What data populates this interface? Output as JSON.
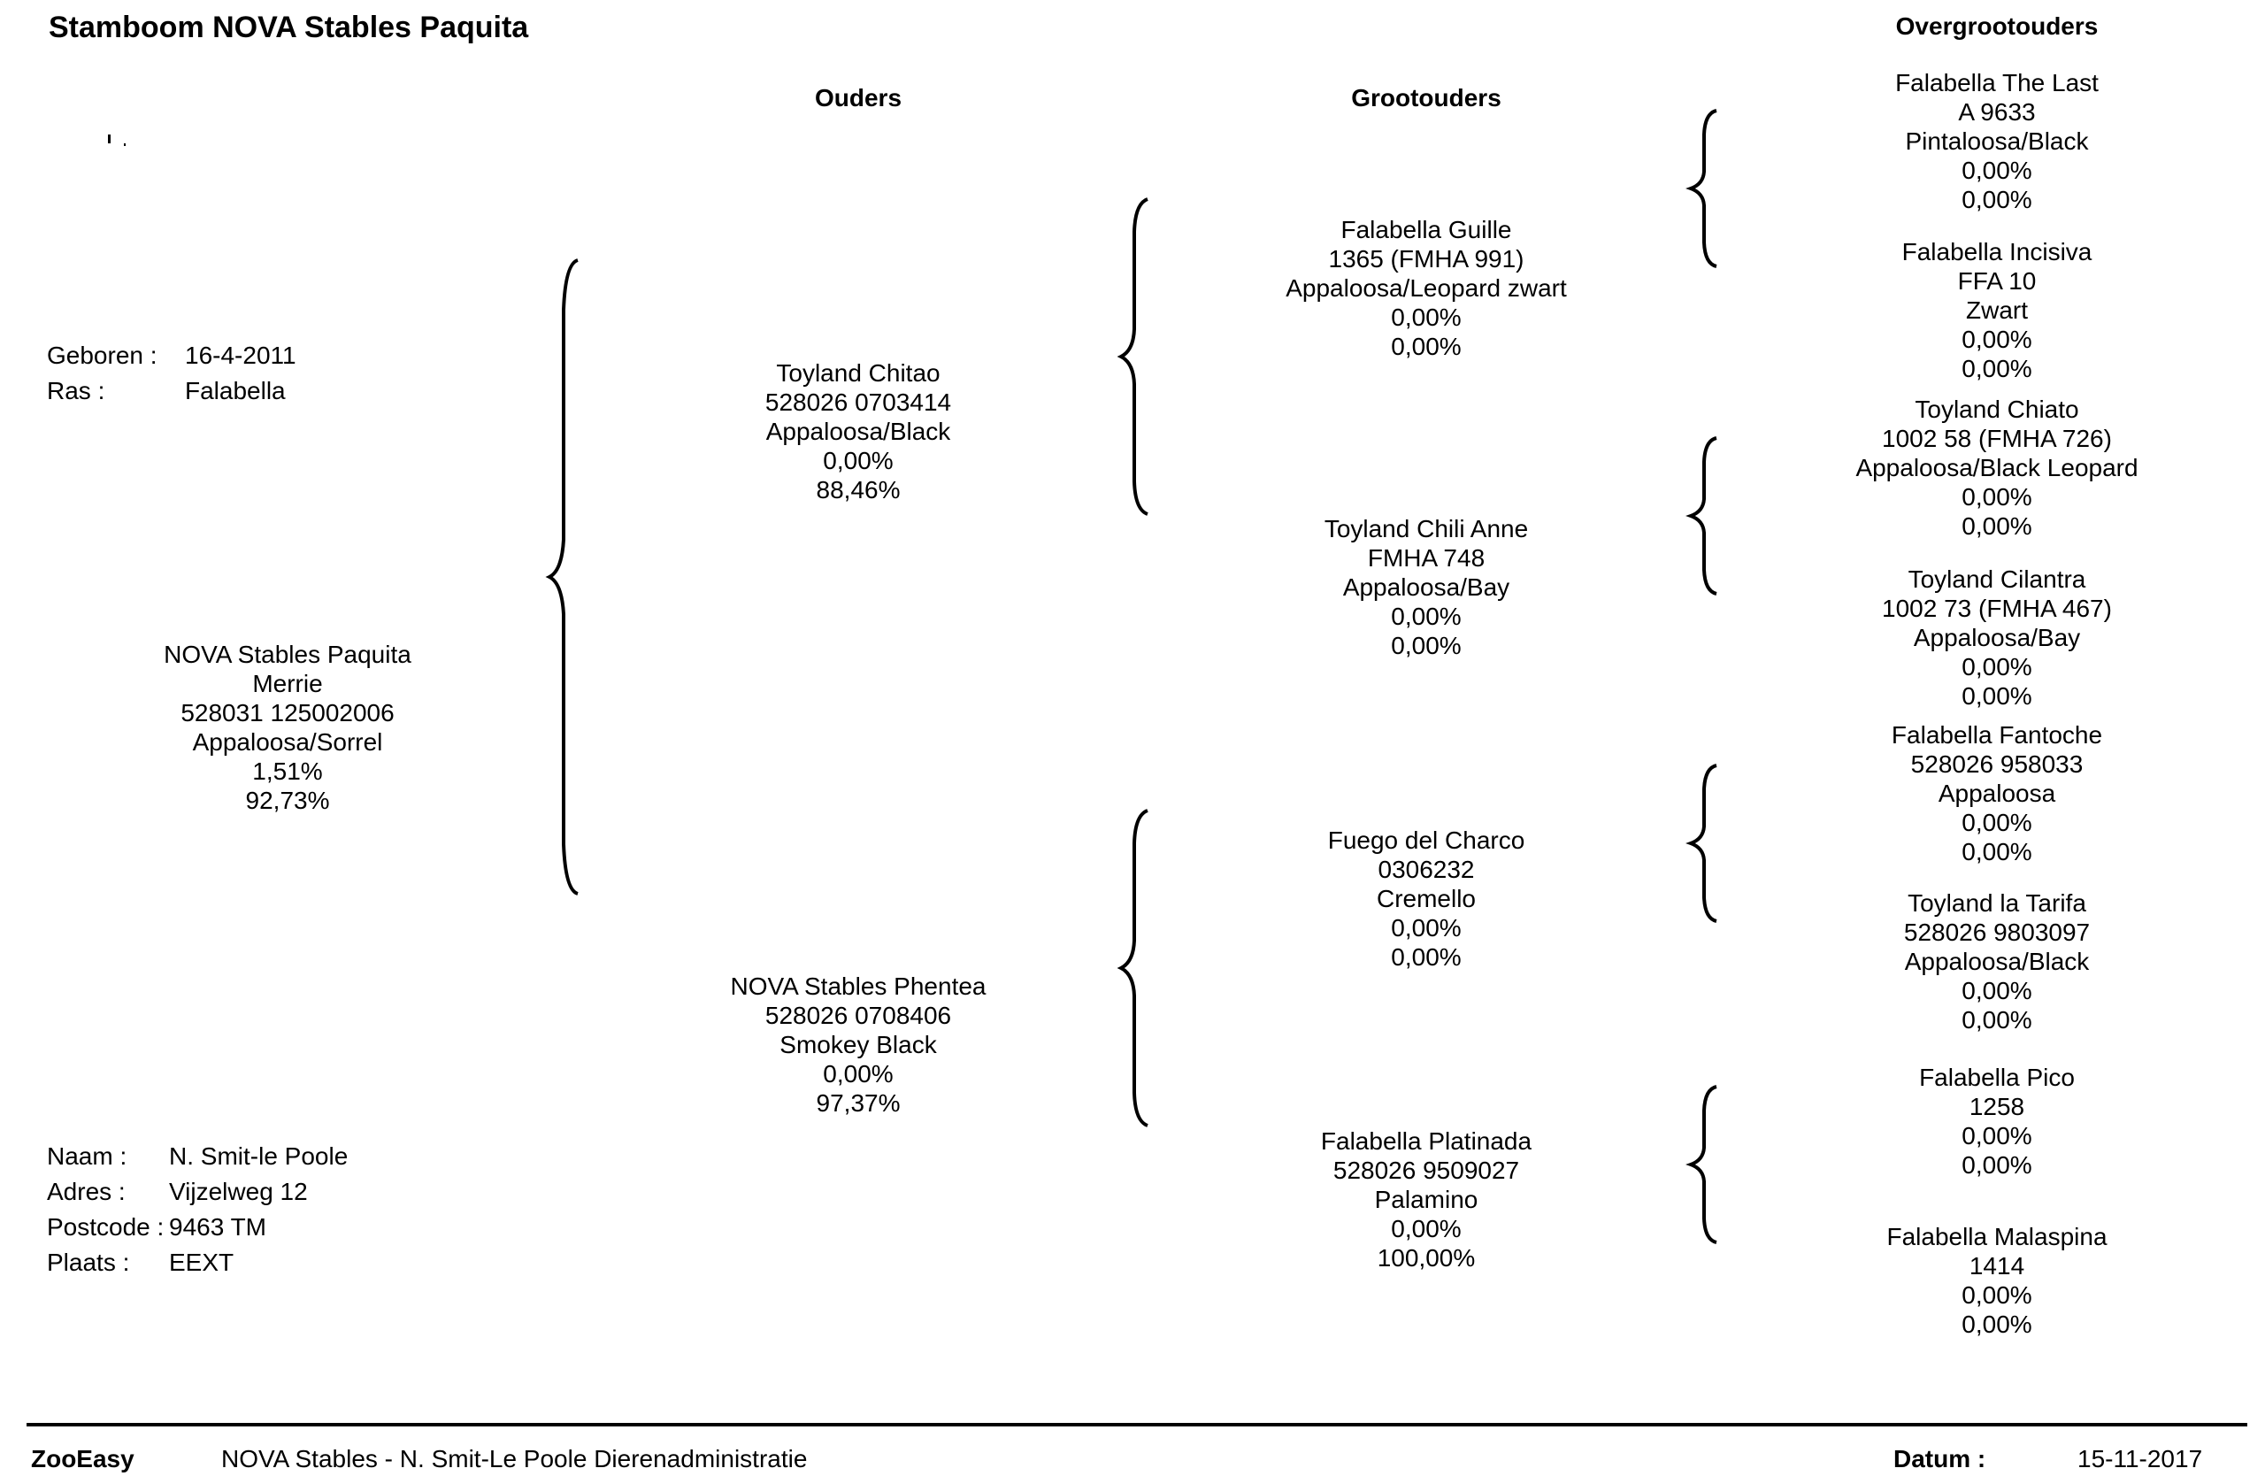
{
  "title": "Stamboom NOVA Stables Paquita",
  "column_headers": {
    "parents": "Ouders",
    "grandparents": "Grootouders",
    "great_grandparents": "Overgrootouders"
  },
  "birth_info": {
    "born_label": "Geboren :",
    "born_value": "16-4-2011",
    "breed_label": "Ras :",
    "breed_value": "Falabella"
  },
  "subject": {
    "name": "NOVA Stables Paquita",
    "sex": "Merrie",
    "number": "528031 125002006",
    "color": "Appaloosa/Sorrel",
    "pct1": "1,51%",
    "pct2": "92,73%"
  },
  "owner": {
    "name_label": "Naam :",
    "name_value": "N.  Smit-le Poole",
    "address_label": "Adres :",
    "address_value": "Vijzelweg 12",
    "postcode_label": "Postcode :",
    "postcode_value": "9463 TM",
    "city_label": "Plaats :",
    "city_value": "EEXT"
  },
  "parents": [
    {
      "name": "Toyland Chitao",
      "number": "528026 0703414",
      "color": "Appaloosa/Black",
      "pct1": "0,00%",
      "pct2": "88,46%"
    },
    {
      "name": "NOVA Stables Phentea",
      "number": "528026 0708406",
      "color": "Smokey Black",
      "pct1": "0,00%",
      "pct2": "97,37%"
    }
  ],
  "grandparents": [
    {
      "name": "Falabella Guille",
      "number": "1365 (FMHA 991)",
      "color": "Appaloosa/Leopard zwart",
      "pct1": "0,00%",
      "pct2": "0,00%"
    },
    {
      "name": "Toyland Chili Anne",
      "number": "FMHA 748",
      "color": "Appaloosa/Bay",
      "pct1": "0,00%",
      "pct2": "0,00%"
    },
    {
      "name": "Fuego del Charco",
      "number": "0306232",
      "color": "Cremello",
      "pct1": "0,00%",
      "pct2": "0,00%"
    },
    {
      "name": "Falabella Platinada",
      "number": "528026 9509027",
      "color": "Palamino",
      "pct1": "0,00%",
      "pct2": "100,00%"
    }
  ],
  "great_grandparents": [
    {
      "name": "Falabella The Last",
      "number": "A 9633",
      "color": "Pintaloosa/Black",
      "pct1": "0,00%",
      "pct2": "0,00%"
    },
    {
      "name": "Falabella Incisiva",
      "number": "FFA 10",
      "color": "Zwart",
      "pct1": "0,00%",
      "pct2": "0,00%"
    },
    {
      "name": "Toyland Chiato",
      "number": "1002 58 (FMHA 726)",
      "color": "Appaloosa/Black Leopard",
      "pct1": "0,00%",
      "pct2": "0,00%"
    },
    {
      "name": "Toyland Cilantra",
      "number": "1002 73 (FMHA 467)",
      "color": "Appaloosa/Bay",
      "pct1": "0,00%",
      "pct2": "0,00%"
    },
    {
      "name": "Falabella Fantoche",
      "number": "528026 958033",
      "color": "Appaloosa",
      "pct1": "0,00%",
      "pct2": "0,00%"
    },
    {
      "name": "Toyland la Tarifa",
      "number": "528026 9803097",
      "color": "Appaloosa/Black",
      "pct1": "0,00%",
      "pct2": "0,00%"
    },
    {
      "name": "Falabella Pico",
      "number": "1258",
      "pct1": "0,00%",
      "pct2": "0,00%"
    },
    {
      "name": "Falabella Malaspina",
      "number": "1414",
      "pct1": "0,00%",
      "pct2": "0,00%"
    }
  ],
  "footer": {
    "app": "ZooEasy",
    "org": "NOVA Stables - N. Smit-Le Poole Dierenadministratie",
    "date_label": "Datum :",
    "date_value": "15-11-2017"
  }
}
